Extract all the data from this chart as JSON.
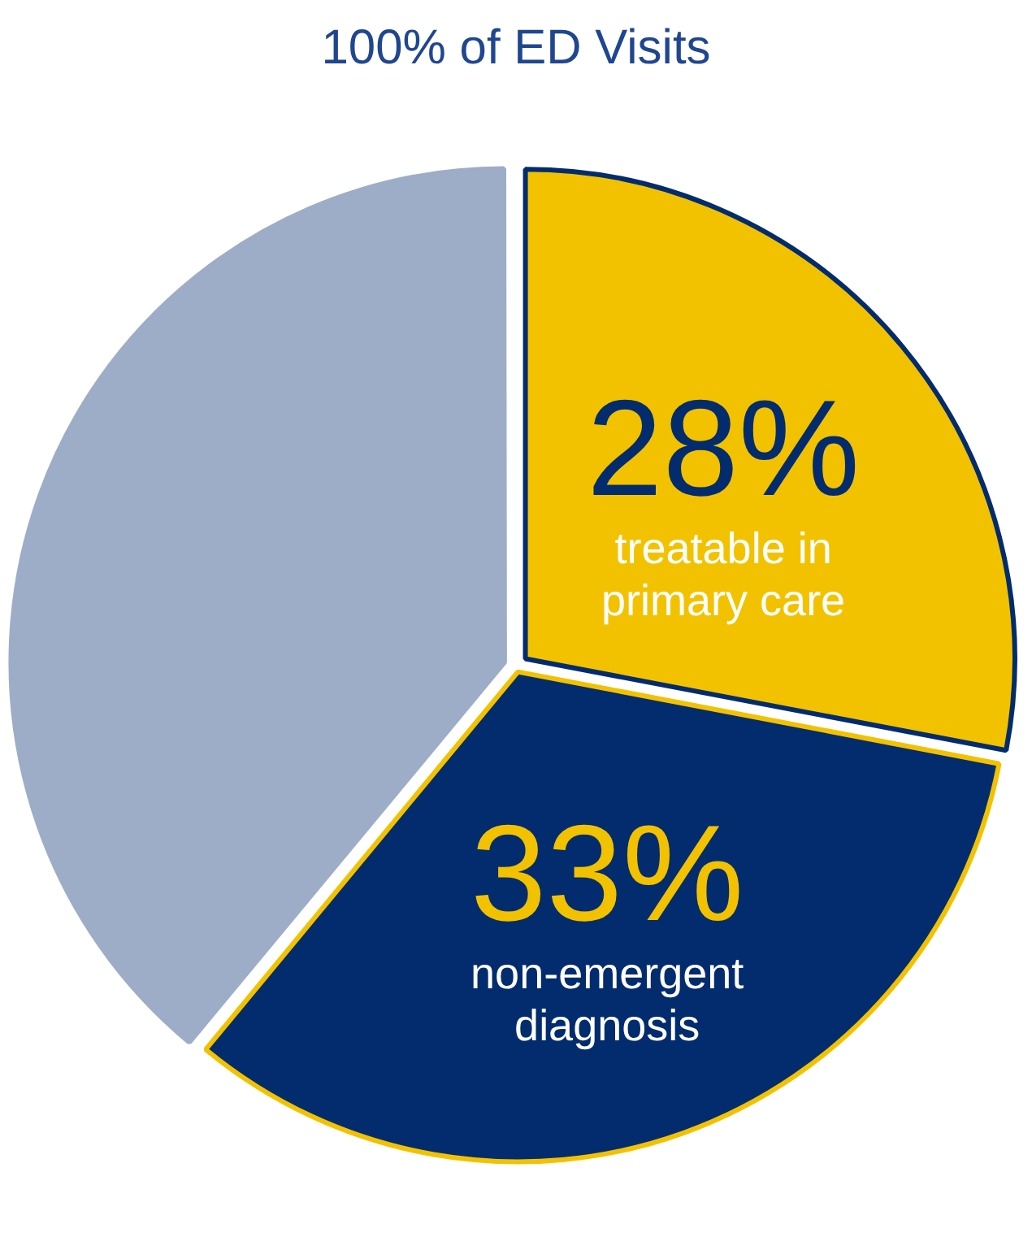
{
  "chart_data": {
    "type": "pie",
    "title": "100% of ED Visits",
    "categories": [
      "treatable in primary care",
      "non-emergent diagnosis",
      null
    ],
    "values": [
      28,
      33,
      39
    ],
    "colors": [
      "#f2c200",
      "#022c6e",
      "#9dadc8"
    ],
    "value_labels": [
      "28%",
      "33%",
      null
    ],
    "legend": false
  }
}
